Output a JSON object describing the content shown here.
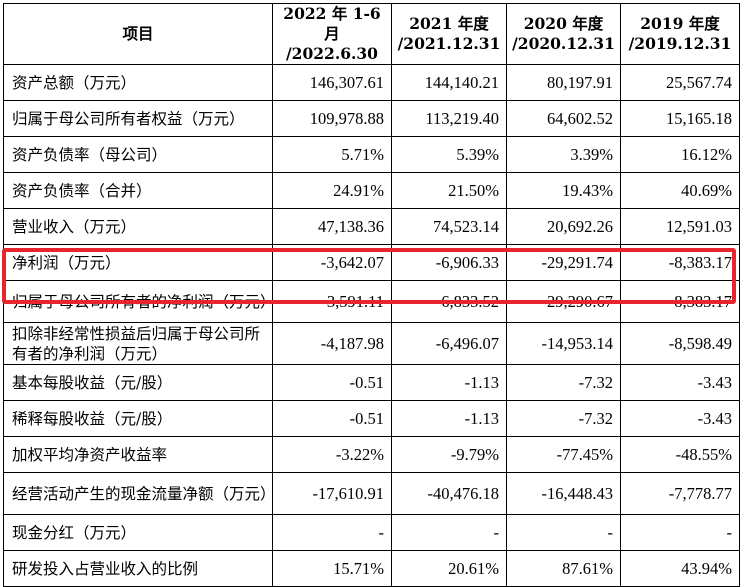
{
  "header": {
    "item": "项目",
    "col1": "2022 年 1-6 月\n/2022.6.30",
    "col2": "2021 年度\n/2021.12.31",
    "col3": "2020 年度\n/2020.12.31",
    "col4": "2019 年度\n/2019.12.31"
  },
  "rows": [
    {
      "label": "资产总额（万元）",
      "v": [
        "146,307.61",
        "144,140.21",
        "80,197.91",
        "25,567.74"
      ]
    },
    {
      "label": "归属于母公司所有者权益（万元）",
      "v": [
        "109,978.88",
        "113,219.40",
        "64,602.52",
        "15,165.18"
      ]
    },
    {
      "label": "资产负债率（母公司）",
      "v": [
        "5.71%",
        "5.39%",
        "3.39%",
        "16.12%"
      ]
    },
    {
      "label": "资产负债率（合并）",
      "v": [
        "24.91%",
        "21.50%",
        "19.43%",
        "40.69%"
      ]
    },
    {
      "label": "营业收入（万元）",
      "v": [
        "47,138.36",
        "74,523.14",
        "20,692.26",
        "12,591.03"
      ]
    },
    {
      "label": "净利润（万元）",
      "v": [
        "-3,642.07",
        "-6,906.33",
        "-29,291.74",
        "-8,383.17"
      ]
    },
    {
      "label": "归属于母公司所有者的净利润（万元）",
      "v": [
        "-3,591.11",
        "-6,833.52",
        "-29,290.67",
        "-8,383.17"
      ]
    },
    {
      "label": "扣除非经常性损益后归属于母公司所有者的净利润（万元）",
      "v": [
        "-4,187.98",
        "-6,496.07",
        "-14,953.14",
        "-8,598.49"
      ]
    },
    {
      "label": "基本每股收益（元/股）",
      "v": [
        "-0.51",
        "-1.13",
        "-7.32",
        "-3.43"
      ]
    },
    {
      "label": "稀释每股收益（元/股）",
      "v": [
        "-0.51",
        "-1.13",
        "-7.32",
        "-3.43"
      ]
    },
    {
      "label": "加权平均净资产收益率",
      "v": [
        "-3.22%",
        "-9.79%",
        "-77.45%",
        "-48.55%"
      ]
    },
    {
      "label": "经营活动产生的现金流量净额（万元）",
      "v": [
        "-17,610.91",
        "-40,476.18",
        "-16,448.43",
        "-7,778.77"
      ]
    },
    {
      "label": "现金分红（万元）",
      "v": [
        "-",
        "-",
        "-",
        "-"
      ]
    },
    {
      "label": "研发投入占营业收入的比例",
      "v": [
        "15.71%",
        "20.61%",
        "87.61%",
        "43.94%"
      ]
    }
  ],
  "highlight_color": "#e8252e"
}
